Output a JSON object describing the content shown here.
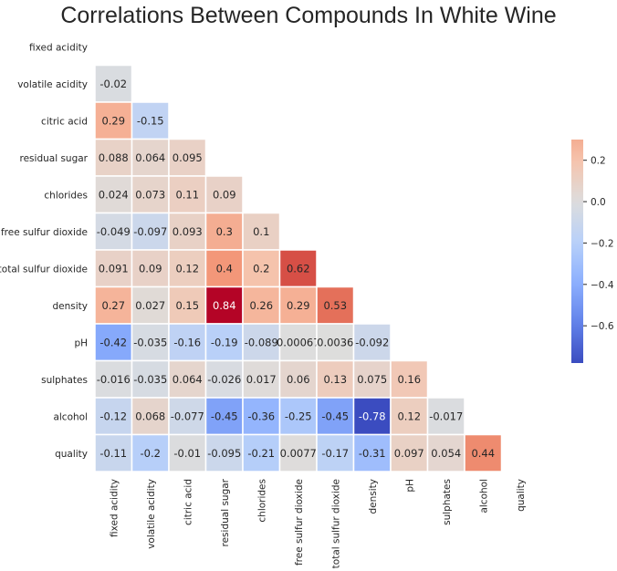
{
  "title": "Correlations Between Compounds In White Wine",
  "chart_data": {
    "type": "heatmap",
    "title": "Correlations Between Compounds In White Wine",
    "mask": "upper-triangle-including-diagonal",
    "variables": [
      "fixed acidity",
      "volatile acidity",
      "citric acid",
      "residual sugar",
      "chlorides",
      "free sulfur dioxide",
      "total sulfur dioxide",
      "density",
      "pH",
      "sulphates",
      "alcohol",
      "quality"
    ],
    "rows": [
      {
        "label": "fixed acidity",
        "values": []
      },
      {
        "label": "volatile acidity",
        "values": [
          -0.02
        ]
      },
      {
        "label": "citric acid",
        "values": [
          0.29,
          -0.15
        ]
      },
      {
        "label": "residual sugar",
        "values": [
          0.088,
          0.064,
          0.095
        ]
      },
      {
        "label": "chlorides",
        "values": [
          0.024,
          0.073,
          0.11,
          0.09
        ]
      },
      {
        "label": "free sulfur dioxide",
        "values": [
          -0.049,
          -0.097,
          0.093,
          0.3,
          0.1
        ]
      },
      {
        "label": "total sulfur dioxide",
        "values": [
          0.091,
          0.09,
          0.12,
          0.4,
          0.2,
          0.62
        ]
      },
      {
        "label": "density",
        "values": [
          0.27,
          0.027,
          0.15,
          0.84,
          0.26,
          0.29,
          0.53
        ]
      },
      {
        "label": "pH",
        "values": [
          -0.42,
          -0.035,
          -0.16,
          -0.19,
          -0.089,
          0.00067,
          0.0036,
          -0.092
        ]
      },
      {
        "label": "sulphates",
        "values": [
          -0.016,
          -0.035,
          0.064,
          -0.026,
          0.017,
          0.06,
          0.13,
          0.075,
          0.16
        ]
      },
      {
        "label": "alcohol",
        "values": [
          -0.12,
          0.068,
          -0.077,
          -0.45,
          -0.36,
          -0.25,
          -0.45,
          -0.78,
          0.12,
          -0.017
        ]
      },
      {
        "label": "quality",
        "values": [
          -0.11,
          -0.2,
          -0.01,
          -0.095,
          -0.21,
          0.0077,
          -0.17,
          -0.31,
          0.097,
          0.054,
          0.44
        ]
      }
    ],
    "colormap": "coolwarm",
    "center": 0,
    "vmin": -0.78,
    "vmax": 0.3,
    "colorbar": {
      "ticks": [
        0.2,
        0.0,
        -0.2,
        -0.4,
        -0.6
      ],
      "tick_labels": [
        "0.2",
        "0.0",
        "−0.2",
        "−0.4",
        "−0.6"
      ],
      "placement": "right"
    },
    "grid": false,
    "cell_border_color": "#ffffff"
  }
}
